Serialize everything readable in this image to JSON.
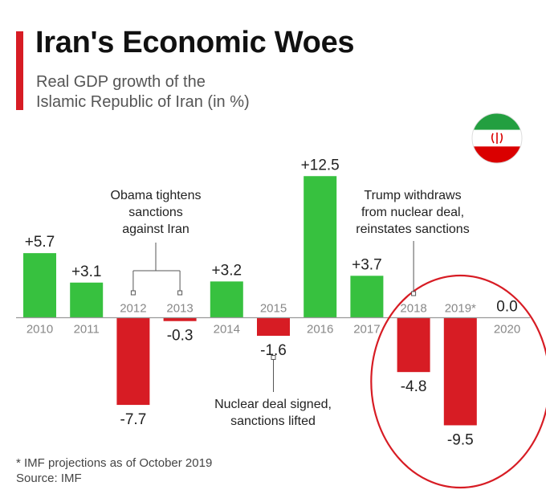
{
  "header": {
    "title": "Iran's Economic Woes",
    "subtitle_line1": "Real GDP growth of the",
    "subtitle_line2": "Islamic Republic of Iran (in %)"
  },
  "flag": {
    "icon": "iran-flag-icon",
    "colors": [
      "#239f40",
      "#ffffff",
      "#da0000"
    ]
  },
  "colors": {
    "positive": "#37c13f",
    "negative": "#d71c24",
    "accent": "#d71c24",
    "axis": "#999999",
    "tick_label": "#888888"
  },
  "chart_data": {
    "type": "bar",
    "categories": [
      "2010",
      "2011",
      "2012",
      "2013",
      "2014",
      "2015",
      "2016",
      "2017",
      "2018",
      "2019*",
      "2020"
    ],
    "values": [
      5.7,
      3.1,
      -7.7,
      -0.3,
      3.2,
      -1.6,
      12.5,
      3.7,
      -4.8,
      -9.5,
      0.0
    ],
    "data_labels": [
      "+5.7",
      "+3.1",
      "-7.7",
      "-0.3",
      "+3.2",
      "-1.6",
      "+12.5",
      "+3.7",
      "-4.8",
      "-9.5",
      "0.0"
    ],
    "title": "Real GDP growth of the Islamic Republic of Iran (in %)",
    "highlighted_categories": [
      "2018",
      "2019*",
      "2020"
    ],
    "annotations": [
      {
        "lines": [
          "Obama tightens",
          "sanctions",
          "against Iran"
        ],
        "points_to": [
          "2012",
          "2013"
        ]
      },
      {
        "lines": [
          "Nuclear deal signed,",
          "sanctions lifted"
        ],
        "points_to": [
          "2015"
        ]
      },
      {
        "lines": [
          "Trump withdraws",
          "from nuclear deal,",
          "reinstates sanctions"
        ],
        "points_to": [
          "2018"
        ]
      }
    ]
  },
  "footnote": {
    "line1": "* IMF projections as of October 2019",
    "line2": "Source: IMF"
  }
}
